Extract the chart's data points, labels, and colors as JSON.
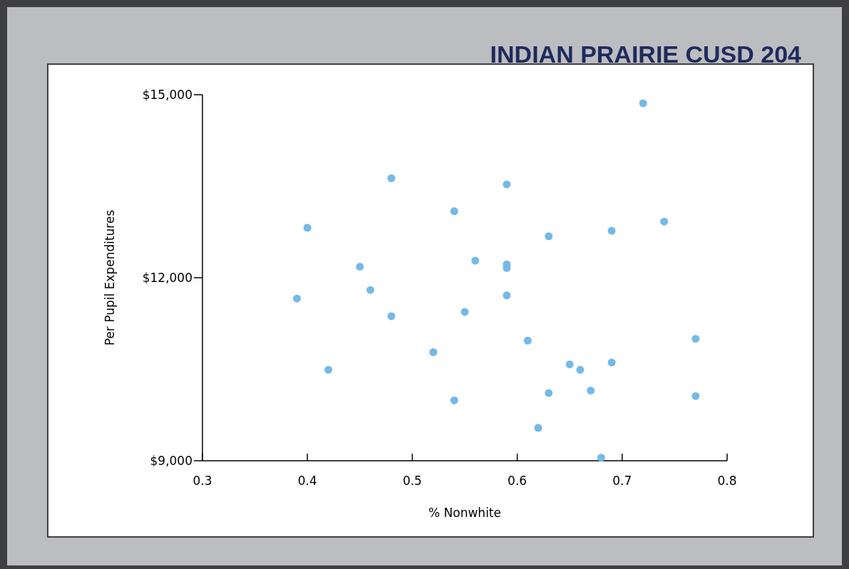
{
  "chart_data": {
    "type": "scatter",
    "title": "INDIAN PRAIRIE CUSD 204",
    "xlabel": "% Nonwhite",
    "ylabel": "Per Pupil Expenditures",
    "x": [
      0.72,
      0.48,
      0.59,
      0.54,
      0.4,
      0.63,
      0.69,
      0.74,
      0.56,
      0.59,
      0.59,
      0.45,
      0.46,
      0.39,
      0.59,
      0.55,
      0.48,
      0.61,
      0.77,
      0.52,
      0.42,
      0.65,
      0.66,
      0.69,
      0.63,
      0.67,
      0.77,
      0.54,
      0.62,
      0.68
    ],
    "series": [
      {
        "color": "#74b9e7",
        "values": [
          14860,
          13630,
          13530,
          13090,
          12820,
          12680,
          12770,
          12920,
          12280,
          12220,
          12160,
          12180,
          11800,
          11660,
          11710,
          11440,
          11370,
          10970,
          11000,
          10780,
          10490,
          10580,
          10490,
          10610,
          10110,
          10150,
          10060,
          9990,
          9540,
          9050
        ]
      }
    ],
    "xlim": [
      0.3,
      0.8
    ],
    "xticks": [
      0.3,
      0.4,
      0.5,
      0.6,
      0.7,
      0.8
    ],
    "ylim": [
      9000,
      15000
    ],
    "yticks": [
      {
        "value": 9000,
        "label": "$9,000"
      },
      {
        "value": 12000,
        "label": "$12,000"
      },
      {
        "value": 15000,
        "label": "$15,000"
      }
    ],
    "grid": false,
    "marker": "circle"
  }
}
